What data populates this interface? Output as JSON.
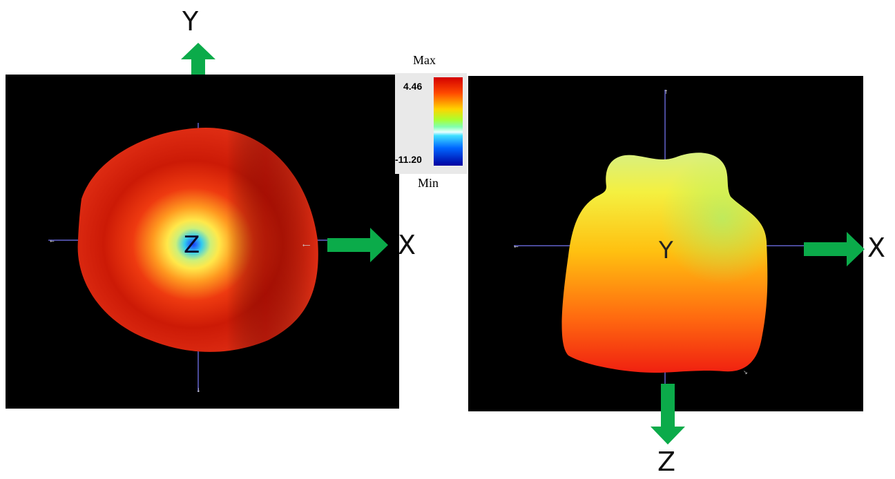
{
  "colors": {
    "arrow": "#0bab4a",
    "background_panel": "#000000",
    "axis_line": "#4a4a9a"
  },
  "left_view": {
    "top_axis": "Y",
    "right_axis": "X",
    "center_axis": "Z"
  },
  "right_view": {
    "bottom_axis": "Z",
    "right_axis": "X",
    "center_axis": "Y"
  },
  "color_scale": {
    "max_label": "Max",
    "min_label": "Min",
    "max_value": "4.46",
    "min_value": "-11.20"
  }
}
